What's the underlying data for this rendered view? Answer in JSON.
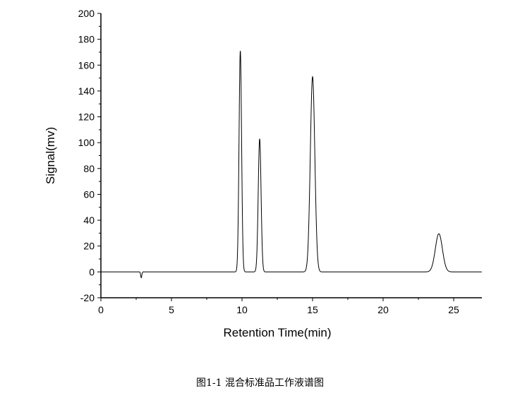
{
  "chart_data": {
    "type": "line",
    "title": "",
    "xlabel": "Retention Time(min)",
    "ylabel": "Signal(mv)",
    "xlim": [
      0,
      27
    ],
    "ylim": [
      -20,
      200
    ],
    "xticks": [
      0,
      5,
      10,
      15,
      20,
      25
    ],
    "yticks": [
      -20,
      0,
      20,
      40,
      60,
      80,
      100,
      120,
      140,
      160,
      180,
      200
    ],
    "grid": false,
    "line_color": "#000000",
    "peaks": [
      {
        "x": 2.86,
        "y": -4.5,
        "width": 0.04
      },
      {
        "x": 9.88,
        "y": 171,
        "width": 0.09
      },
      {
        "x": 11.25,
        "y": 103,
        "width": 0.1
      },
      {
        "x": 15.0,
        "y": 151,
        "width": 0.16
      },
      {
        "x": 23.95,
        "y": 29.5,
        "width": 0.25
      }
    ],
    "baseline": 0
  },
  "caption": "图1-1  混合标准品工作液谱图"
}
